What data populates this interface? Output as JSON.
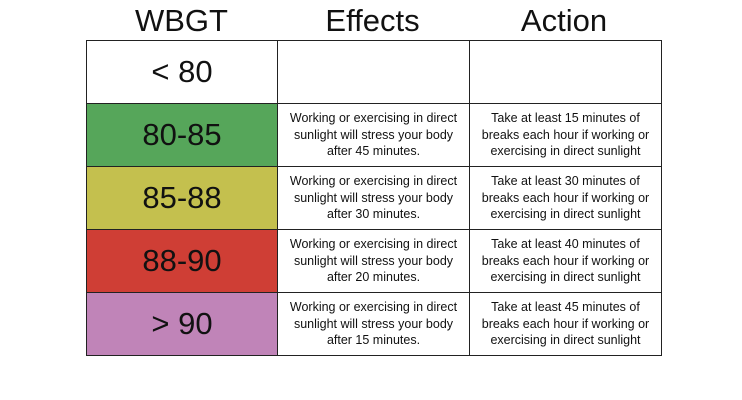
{
  "headers": {
    "wbgt": "WBGT",
    "effects": "Effects",
    "action": "Action"
  },
  "rows": [
    {
      "level": "< 80",
      "color": "#ffffff",
      "effects": "",
      "action": ""
    },
    {
      "level": "80-85",
      "color": "#56a65a",
      "effects": "Working or exercising in direct sunlight will stress your body after 45 minutes.",
      "action": "Take at least 15 minutes of breaks each hour if working or exercising in direct sunlight"
    },
    {
      "level": "85-88",
      "color": "#c4c04e",
      "effects": "Working or exercising in direct sunlight will stress your body after 30 minutes.",
      "action": "Take at least 30 minutes of breaks each hour if working or exercising in direct sunlight"
    },
    {
      "level": "88-90",
      "color": "#cf3e35",
      "effects": "Working or exercising in direct sunlight will stress your body after 20 minutes.",
      "action": "Take at least 40 minutes of breaks each hour if working or exercising in direct sunlight"
    },
    {
      "level": "> 90",
      "color": "#c084b8",
      "effects": "Working or exercising in direct sunlight will stress your body after 15 minutes.",
      "action": "Take at least 45 minutes of breaks each hour if working or exercising in direct sunlight"
    }
  ]
}
